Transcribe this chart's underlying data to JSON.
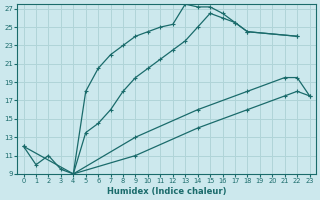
{
  "xlabel": "Humidex (Indice chaleur)",
  "bg_color": "#cce8ed",
  "grid_color": "#b0d4d8",
  "line_color": "#1a6b6b",
  "xlim": [
    -0.5,
    23.5
  ],
  "ylim": [
    9,
    27.5
  ],
  "xticks": [
    0,
    1,
    2,
    3,
    4,
    5,
    6,
    7,
    8,
    9,
    10,
    11,
    12,
    13,
    14,
    15,
    16,
    17,
    18,
    19,
    20,
    21,
    22,
    23
  ],
  "yticks": [
    9,
    11,
    13,
    15,
    17,
    19,
    21,
    23,
    25,
    27
  ],
  "curve1": {
    "x": [
      0,
      1,
      2,
      3,
      4,
      5,
      6,
      7,
      8,
      9,
      10,
      11,
      12,
      13,
      14,
      15,
      16,
      17,
      18,
      22
    ],
    "y": [
      12,
      10,
      11,
      9.5,
      9,
      18,
      20.5,
      22,
      23,
      24,
      24.5,
      25,
      25.3,
      27.5,
      27.2,
      27.2,
      26.5,
      25.5,
      24.5,
      24
    ]
  },
  "curve2": {
    "x": [
      4,
      5,
      6,
      7,
      8,
      9,
      10,
      11,
      12,
      13,
      14,
      15,
      16,
      17,
      18,
      22
    ],
    "y": [
      9,
      13.5,
      14.5,
      16,
      18,
      19.5,
      20.5,
      21.5,
      22.5,
      23.5,
      25,
      26.5,
      26,
      25.5,
      24.5,
      24
    ]
  },
  "curve3": {
    "x": [
      0,
      4,
      9,
      14,
      18,
      21,
      22,
      23
    ],
    "y": [
      12,
      9,
      13,
      16,
      18,
      19.5,
      19.5,
      17.5
    ]
  },
  "curve4": {
    "x": [
      4,
      9,
      14,
      18,
      21,
      22,
      23
    ],
    "y": [
      9,
      11,
      14,
      16,
      17.5,
      18,
      17.5
    ]
  }
}
